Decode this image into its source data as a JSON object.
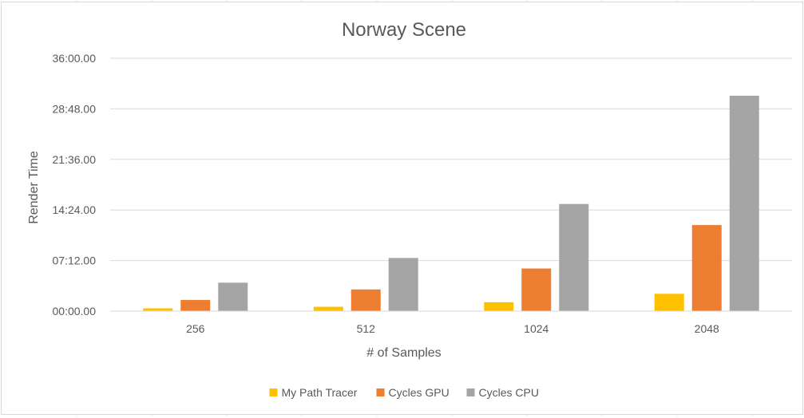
{
  "chart_data": {
    "type": "bar",
    "title": "Norway Scene",
    "xlabel": "# of Samples",
    "ylabel": "Render Time",
    "categories": [
      "256",
      "512",
      "1024",
      "2048"
    ],
    "yticks": [
      "00:00.00",
      "07:12.00",
      "14:24.00",
      "21:36.00",
      "28:48.00",
      "36:00.00"
    ],
    "ylim_seconds": [
      0,
      2160
    ],
    "ytick_step_seconds": 432,
    "series": [
      {
        "name": "My Path Tracer",
        "color": "#FFC000",
        "values_seconds": [
          24,
          37,
          76,
          148
        ]
      },
      {
        "name": "Cycles GPU",
        "color": "#ED7D31",
        "values_seconds": [
          95,
          185,
          364,
          735
        ]
      },
      {
        "name": "Cycles CPU",
        "color": "#A5A5A5",
        "values_seconds": [
          243,
          454,
          915,
          1840
        ]
      }
    ],
    "grid": true,
    "legend_position": "bottom"
  }
}
